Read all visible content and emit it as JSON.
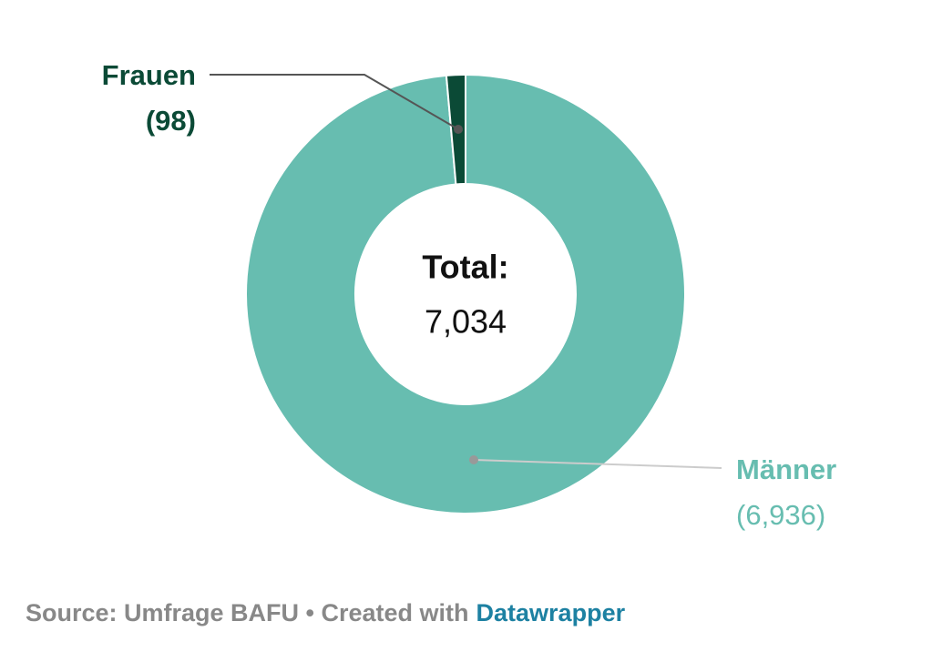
{
  "chart_data": {
    "type": "pie",
    "categories": [
      "Männer",
      "Frauen"
    ],
    "values": [
      6936,
      98
    ],
    "value_labels": [
      "(6,936)",
      "(98)"
    ],
    "colors": [
      "#67bdb0",
      "#0b4a36"
    ],
    "donut": true,
    "center_title": "Total:",
    "center_value": "7,034",
    "source": "Source: Umfrage BAFU • Created with",
    "credit_link": "Datawrapper"
  }
}
